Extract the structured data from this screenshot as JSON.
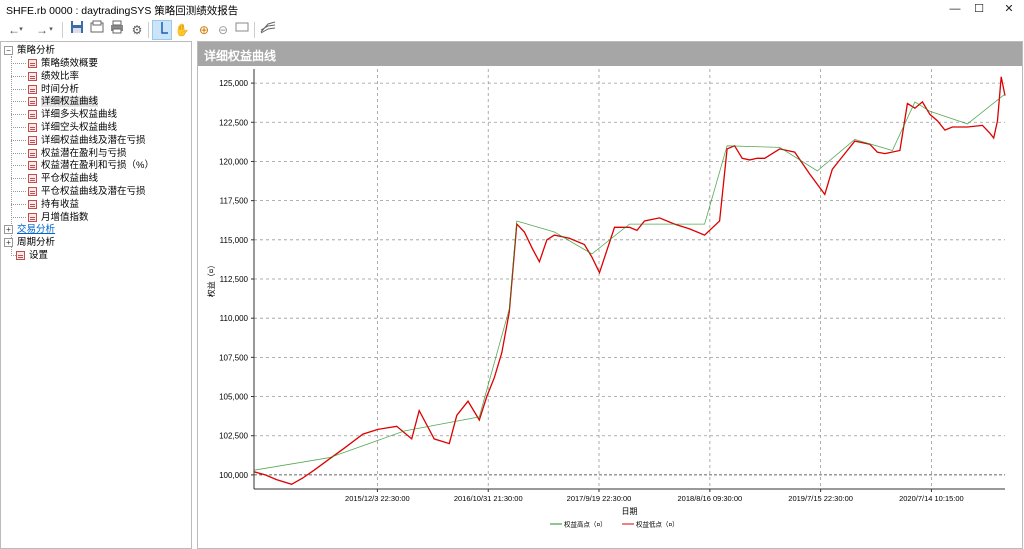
{
  "window": {
    "title": "SHFE.rb 0000 : daytradingSYS 策略回测绩效报告",
    "buttons": {
      "minimize": "—",
      "maximize": "☐",
      "close": "✕"
    }
  },
  "toolbar": {
    "items": [
      "back-icon",
      "forward-icon",
      "save-icon",
      "export-icon",
      "print-icon",
      "settings-icon",
      "crosshair-icon",
      "hand-icon",
      "zoom-in-icon",
      "zoom-out-icon",
      "zoom-fit-icon",
      "chart-options-icon"
    ]
  },
  "tree": {
    "root1": "策略分析",
    "items": [
      "策略绩效概要",
      "绩效比率",
      "时间分析",
      "详细权益曲线",
      "详细多头权益曲线",
      "详细空头权益曲线",
      "详细权益曲线及潜在亏损",
      "权益潜在盈利与亏损",
      "权益潜在盈利和亏损（%）",
      "平仓权益曲线",
      "平仓权益曲线及潜在亏损",
      "持有收益",
      "月增值指数"
    ],
    "root2": "交易分析",
    "root3": "周期分析",
    "settings": "设置"
  },
  "panel": {
    "header": "详细权益曲线"
  },
  "colors": {
    "high": "#1e8c1e",
    "low": "#dd0000",
    "grid": "#999999",
    "header_bg": "#a6a6a6"
  },
  "chart_data": {
    "type": "line",
    "title": "",
    "xlabel": "日期",
    "ylabel": "权益（¤）",
    "ylim": [
      99100,
      125900
    ],
    "yticks": [
      100000,
      102500,
      105000,
      107500,
      110000,
      112500,
      115000,
      117500,
      120000,
      122500,
      125000
    ],
    "ytick_labels": [
      "100,000",
      "102,500",
      "105,000",
      "107,500",
      "110,000",
      "112,500",
      "115,000",
      "117,500",
      "120,000",
      "122,500",
      "125,000"
    ],
    "xticks": [
      {
        "x": 0.1643,
        "label": "2015/12/3 22:30:00"
      },
      {
        "x": 0.3119,
        "label": "2016/10/31 21:30:00"
      },
      {
        "x": 0.4594,
        "label": "2017/9/19 22:30:00"
      },
      {
        "x": 0.607,
        "label": "2018/8/16 09:30:00"
      },
      {
        "x": 0.7545,
        "label": "2019/7/15 22:30:00"
      },
      {
        "x": 0.902,
        "label": "2020/7/14 10:15:00"
      }
    ],
    "grid": true,
    "legend": {
      "placement": "bottom-center",
      "entries": [
        "权益高点（¤）",
        "权益低点（¤）"
      ]
    },
    "series": [
      {
        "name": "权益低点（¤）",
        "x": [
          0,
          0.015,
          0.03,
          0.05,
          0.065,
          0.08,
          0.1,
          0.12,
          0.145,
          0.165,
          0.19,
          0.21,
          0.22,
          0.24,
          0.26,
          0.27,
          0.285,
          0.3,
          0.31,
          0.32,
          0.33,
          0.34,
          0.35,
          0.36,
          0.37,
          0.38,
          0.39,
          0.4,
          0.42,
          0.44,
          0.45,
          0.46,
          0.48,
          0.5,
          0.51,
          0.52,
          0.54,
          0.56,
          0.58,
          0.6,
          0.62,
          0.63,
          0.64,
          0.65,
          0.66,
          0.67,
          0.68,
          0.7,
          0.72,
          0.74,
          0.76,
          0.77,
          0.78,
          0.8,
          0.82,
          0.83,
          0.84,
          0.86,
          0.87,
          0.88,
          0.89,
          0.9,
          0.91,
          0.92,
          0.93,
          0.95,
          0.97,
          0.98,
          0.985,
          0.99,
          0.995,
          1.0
        ],
        "values": [
          100200,
          100000,
          99700,
          99400,
          99800,
          100300,
          101000,
          101700,
          102600,
          102900,
          103100,
          102300,
          104100,
          102300,
          102000,
          103800,
          104700,
          103500,
          105000,
          106200,
          107800,
          110400,
          116000,
          115500,
          114500,
          113600,
          115000,
          115300,
          115100,
          114700,
          113900,
          112900,
          115800,
          115800,
          115600,
          116200,
          116400,
          116000,
          115700,
          115300,
          116200,
          120800,
          121000,
          120200,
          120100,
          120200,
          120200,
          120800,
          120600,
          119200,
          117900,
          119500,
          120100,
          121300,
          121100,
          120600,
          120500,
          120700,
          123700,
          123400,
          123800,
          123000,
          122600,
          122000,
          122200,
          122200,
          122300,
          121800,
          121500,
          122600,
          125400,
          124200
        ]
      },
      {
        "name": "权益高点（¤）",
        "x": [
          0,
          0.1,
          0.2,
          0.3,
          0.34,
          0.35,
          0.4,
          0.45,
          0.5,
          0.6,
          0.63,
          0.7,
          0.75,
          0.8,
          0.85,
          0.88,
          0.9,
          0.95,
          1.0
        ],
        "values": [
          100300,
          101100,
          102800,
          103700,
          110600,
          116200,
          115500,
          114100,
          116000,
          116000,
          121000,
          120900,
          119400,
          121400,
          120700,
          123800,
          123200,
          122400,
          124300
        ]
      }
    ]
  }
}
